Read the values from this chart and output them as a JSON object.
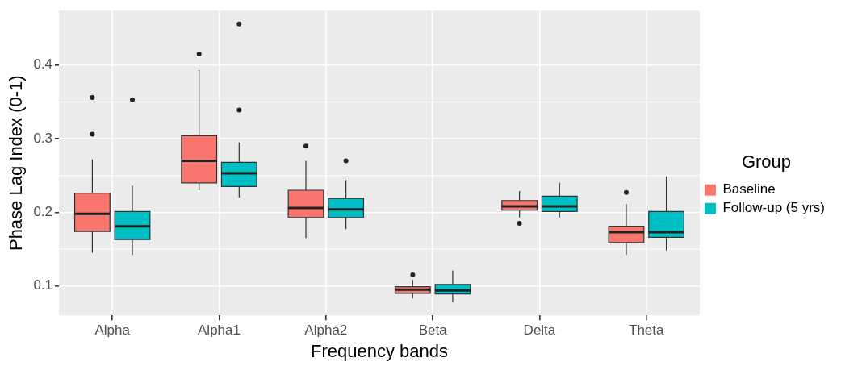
{
  "chart_data": {
    "type": "box",
    "xlabel": "Frequency bands",
    "ylabel": "Phase Lag Index (0-1)",
    "legend_title": "Group",
    "legend": "right",
    "grid": true,
    "categories": [
      "Alpha",
      "Alpha1",
      "Alpha2",
      "Beta",
      "Delta",
      "Theta"
    ],
    "ylim": [
      0.06,
      0.474
    ],
    "yticks": [
      0.1,
      0.2,
      0.3,
      0.4
    ],
    "series": [
      {
        "name": "Baseline",
        "color": "#f8766d",
        "boxes": [
          {
            "low": 0.145,
            "q1": 0.174,
            "median": 0.198,
            "q3": 0.226,
            "high": 0.272,
            "outliers": [
              0.356,
              0.306
            ]
          },
          {
            "low": 0.23,
            "q1": 0.24,
            "median": 0.27,
            "q3": 0.304,
            "high": 0.393,
            "outliers": [
              0.415
            ]
          },
          {
            "low": 0.165,
            "q1": 0.193,
            "median": 0.206,
            "q3": 0.23,
            "high": 0.27,
            "outliers": [
              0.29
            ]
          },
          {
            "low": 0.083,
            "q1": 0.09,
            "median": 0.095,
            "q3": 0.099,
            "high": 0.108,
            "outliers": [
              0.115
            ]
          },
          {
            "low": 0.193,
            "q1": 0.203,
            "median": 0.208,
            "q3": 0.216,
            "high": 0.229,
            "outliers": [
              0.185
            ]
          },
          {
            "low": 0.142,
            "q1": 0.159,
            "median": 0.173,
            "q3": 0.181,
            "high": 0.211,
            "outliers": [
              0.227
            ]
          }
        ]
      },
      {
        "name": "Follow-up (5 yrs)",
        "color": "#00bfc4",
        "boxes": [
          {
            "low": 0.142,
            "q1": 0.163,
            "median": 0.181,
            "q3": 0.201,
            "high": 0.236,
            "outliers": [
              0.353
            ]
          },
          {
            "low": 0.22,
            "q1": 0.235,
            "median": 0.253,
            "q3": 0.268,
            "high": 0.295,
            "outliers": [
              0.456,
              0.339
            ]
          },
          {
            "low": 0.177,
            "q1": 0.193,
            "median": 0.204,
            "q3": 0.219,
            "high": 0.244,
            "outliers": [
              0.27
            ]
          },
          {
            "low": 0.078,
            "q1": 0.089,
            "median": 0.094,
            "q3": 0.102,
            "high": 0.121
          },
          {
            "low": 0.193,
            "q1": 0.201,
            "median": 0.208,
            "q3": 0.222,
            "high": 0.24
          },
          {
            "low": 0.148,
            "q1": 0.166,
            "median": 0.173,
            "q3": 0.201,
            "high": 0.249
          }
        ]
      }
    ]
  }
}
